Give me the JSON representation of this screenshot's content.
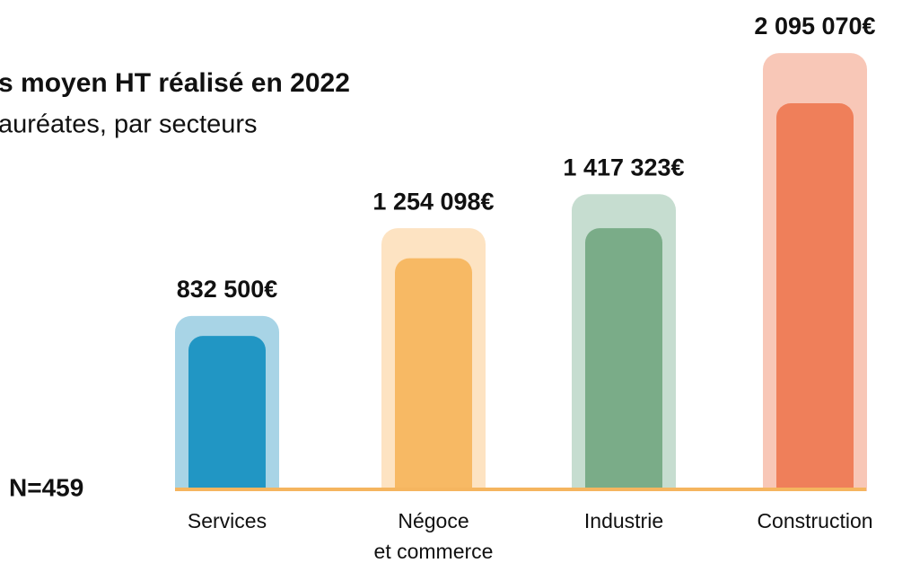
{
  "chart_data": {
    "type": "bar",
    "title": "s moyen HT réalisé en 2022",
    "subtitle": "auréates, par secteurs",
    "note": "N=459",
    "categories": [
      "Services",
      "Négoce\net commerce",
      "Industrie",
      "Construction"
    ],
    "values": [
      832500,
      1254098,
      1417323,
      2095070
    ],
    "value_labels": [
      "832 500€",
      "1 254 098€",
      "1 417 323€",
      "2 095 070€"
    ],
    "colors": [
      "#2196c4",
      "#f7b964",
      "#7aac88",
      "#ef7f5a"
    ],
    "halo_colors": [
      "#a8d4e6",
      "#fde3c2",
      "#c6ddd0",
      "#f8c7b7"
    ],
    "baseline_color": "#f5b55f"
  }
}
